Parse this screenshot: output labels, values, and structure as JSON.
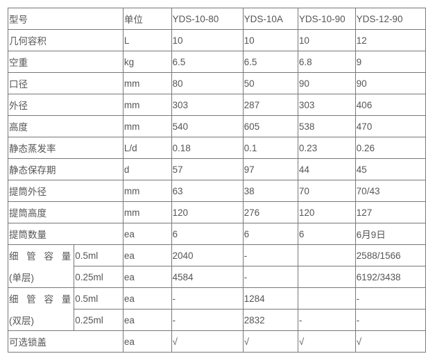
{
  "header": [
    "型号",
    "单位",
    "YDS-10-80",
    "YDS-10A",
    "YDS-10-90",
    "YDS-12-90"
  ],
  "rows": [
    [
      "几何容积",
      "L",
      "10",
      "10",
      "10",
      "12"
    ],
    [
      "空重",
      "kg",
      "6.5",
      "6.5",
      "6.8",
      "9"
    ],
    [
      "口径",
      "mm",
      "80",
      "50",
      "90",
      "90"
    ],
    [
      "外径",
      "mm",
      "303",
      "287",
      "303",
      "406"
    ],
    [
      "高度",
      "mm",
      "540",
      "605",
      "538",
      "470"
    ],
    [
      "静态蒸发率",
      "L/d",
      "0.18",
      "0.1",
      "0.23",
      "0.26"
    ],
    [
      "静态保存期",
      "d",
      "57",
      "97",
      "44",
      "45"
    ],
    [
      "提筒外径",
      "mm",
      "63",
      "38",
      "70",
      "70/43"
    ],
    [
      "提筒高度",
      "mm",
      "120",
      "276",
      "120",
      "127"
    ],
    [
      "提筒数量",
      "ea",
      "6",
      "6",
      "6",
      "6月9日"
    ]
  ],
  "groups": [
    {
      "label_top": "细 管 容 量",
      "label_bottom": "(单层)",
      "sub": [
        [
          "0.5ml",
          "ea",
          "2040",
          "-",
          "",
          "2588/1566"
        ],
        [
          "0.25ml",
          "ea",
          "4584",
          "-",
          "",
          "6192/3438"
        ]
      ]
    },
    {
      "label_top": "细 管 容 量",
      "label_bottom": "(双层)",
      "sub": [
        [
          "0.5ml",
          "ea",
          "-",
          "1284",
          "",
          "-"
        ],
        [
          "0.25ml",
          "ea",
          "-",
          "2832",
          "-",
          "-"
        ]
      ]
    }
  ],
  "last": [
    "可选锁盖",
    "ea",
    "√",
    "√",
    "√",
    "√"
  ]
}
